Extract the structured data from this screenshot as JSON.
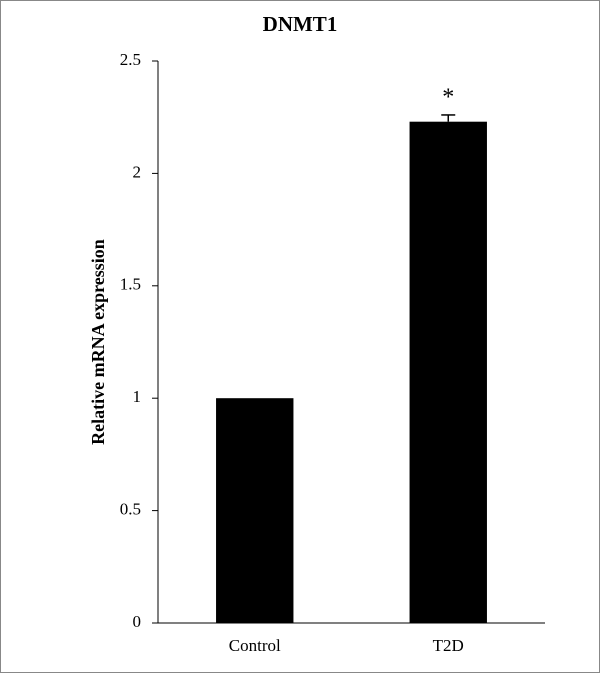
{
  "chart_data": {
    "type": "bar",
    "title": "DNMT1",
    "y_label": "Relative mRNA expression",
    "categories": [
      "Control",
      "T2D"
    ],
    "values": [
      1.0,
      2.23
    ],
    "errors": [
      null,
      0.03
    ],
    "color": "#000000",
    "annotations": [
      {
        "text": "*",
        "x": "T2D"
      }
    ],
    "ylim": [
      0,
      2.5
    ],
    "yticks": [
      0,
      0.5,
      1,
      1.5,
      2,
      2.5
    ],
    "grid": false
  }
}
